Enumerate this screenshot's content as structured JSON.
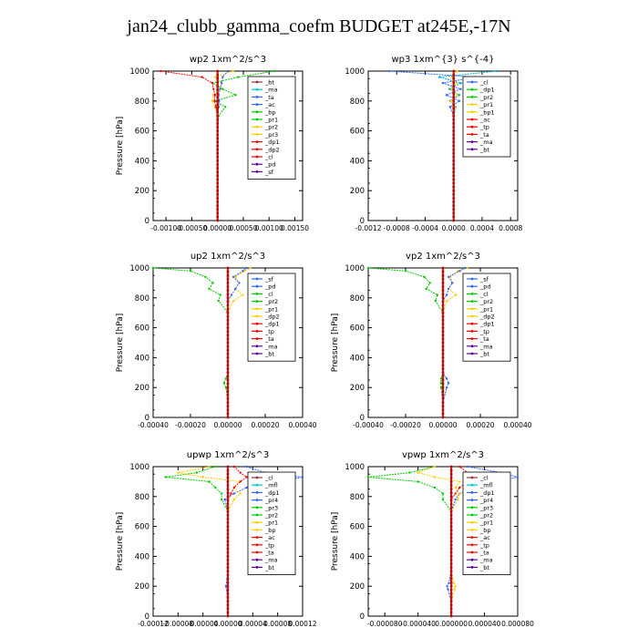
{
  "page": {
    "title": "jan24_clubb_gamma_coefm  BUDGET at245E,-17N"
  },
  "chart_data": [
    {
      "type": "line",
      "title": "wp2   1xm^2/s^3",
      "ylabel": "Pressure [hPa]",
      "ylim": [
        1000,
        0
      ],
      "xlim": [
        -0.00125,
        0.00165
      ],
      "xticks": [
        -0.001,
        -0.0005,
        0.0,
        0.0005,
        0.001,
        0.0015
      ],
      "xtick_labels": [
        "-0.00100",
        "-0.00050",
        "0.00000",
        "0.00050",
        "0.00100",
        "0.00150"
      ],
      "yticks": [
        0,
        200,
        400,
        600,
        800,
        1000
      ],
      "legend": [
        "_bt",
        "_ma",
        "_ta",
        "_ac",
        "_bp",
        "_pr1",
        "_pr2",
        "_pr3",
        "_dp1",
        "_dp2",
        "_cl",
        "_pd",
        "_sf"
      ],
      "pressure": [
        0,
        100,
        200,
        300,
        400,
        500,
        600,
        700,
        760,
        800,
        840,
        880,
        920,
        960,
        1000
      ],
      "series": [
        {
          "name": "_bp",
          "color": "#00cc00",
          "values": [
            0,
            0,
            0,
            0,
            0,
            0,
            0,
            2e-05,
            0.00015,
            -5e-05,
            0.00035,
            0.0001,
            -0.0001,
            0.0004,
            0.0011
          ]
        },
        {
          "name": "_pr1",
          "color": "#ffcc00",
          "values": [
            0,
            0,
            0,
            0,
            0,
            0,
            0,
            0,
            -5e-05,
            -0.0001,
            -8e-05,
            5e-05,
            8e-05,
            -5e-05,
            0.0003
          ]
        },
        {
          "name": "_dp1",
          "color": "#ff0000",
          "values": [
            0,
            0,
            0,
            0,
            0,
            0,
            0,
            0,
            -3e-05,
            -6e-05,
            -5e-05,
            -8e-05,
            -0.0001,
            -0.0003,
            -0.0011
          ]
        },
        {
          "name": "_ta",
          "color": "#3366ff",
          "values": [
            0,
            0,
            0,
            0,
            0,
            0,
            0,
            0,
            2e-05,
            3e-05,
            2e-05,
            5e-05,
            8e-05,
            0.0001,
            0.0002
          ]
        },
        {
          "name": "_pd",
          "color": "#660099",
          "values": [
            0,
            0,
            0,
            0,
            0,
            0,
            0,
            0,
            0,
            0,
            0,
            0,
            0,
            0,
            0
          ]
        },
        {
          "name": "_bt",
          "color": "#993333",
          "values": [
            0,
            0,
            0,
            0,
            0,
            0,
            0,
            0,
            0,
            0,
            0,
            0,
            0,
            0,
            0
          ]
        }
      ]
    },
    {
      "type": "line",
      "title": "wp3   1xm^{3} s^{-4}",
      "ylabel": "",
      "ylim": [
        1000,
        0
      ],
      "xlim": [
        -0.0012,
        0.0009
      ],
      "xticks": [
        -0.0012,
        -0.0008,
        -0.0004,
        0.0,
        0.0004,
        0.0008
      ],
      "xtick_labels": [
        "-0.0012",
        "-0.0008",
        "-0.0004",
        "0.0000",
        "0.0004",
        "0.0008"
      ],
      "yticks": [
        0,
        200,
        400,
        600,
        800,
        1000
      ],
      "legend": [
        "_cl",
        "_dp1",
        "_pr2",
        "_pr1",
        "_bp1",
        "_ac",
        "_tp",
        "_ta",
        "_ma",
        "_bt"
      ],
      "pressure": [
        0,
        100,
        200,
        300,
        400,
        500,
        600,
        700,
        760,
        800,
        840,
        880,
        920,
        960,
        1000
      ],
      "series": [
        {
          "name": "_tp",
          "color": "#3366ff",
          "values": [
            0,
            0,
            0,
            0,
            0,
            0,
            0,
            0,
            -5e-05,
            8e-05,
            -0.0001,
            0.0001,
            -0.00015,
            0.0003,
            -0.0009
          ]
        },
        {
          "name": "_ta",
          "color": "#00aacc",
          "values": [
            0,
            0,
            0,
            0,
            0,
            0,
            0,
            0,
            3e-05,
            -5e-05,
            8e-05,
            -6e-05,
            0.0001,
            -0.0002,
            0.0006
          ]
        },
        {
          "name": "_bp1",
          "color": "#ffcc00",
          "values": [
            0,
            0,
            0,
            0,
            0,
            0,
            0,
            0,
            2e-05,
            -4e-05,
            5e-05,
            -3e-05,
            4e-05,
            -2e-05,
            5e-05
          ]
        },
        {
          "name": "_cl",
          "color": "#ff0000",
          "values": [
            0,
            0,
            0,
            0,
            0,
            0,
            0,
            0,
            0,
            0,
            0,
            0,
            0,
            0,
            0
          ]
        },
        {
          "name": "_bt",
          "color": "#993333",
          "values": [
            0,
            0,
            0,
            0,
            0,
            0,
            0,
            0,
            0,
            0,
            0,
            0,
            0,
            0,
            0
          ]
        }
      ]
    },
    {
      "type": "line",
      "title": "up2   1xm^2/s^3",
      "ylabel": "Pressure [hPa]",
      "ylim": [
        1000,
        0
      ],
      "xlim": [
        -0.0004,
        0.0004
      ],
      "xticks": [
        -0.0004,
        -0.0002,
        0.0,
        0.0002,
        0.0004
      ],
      "xtick_labels": [
        "-0.00040",
        "-0.00020",
        "0.00000",
        "0.00020",
        "0.00040"
      ],
      "yticks": [
        0,
        200,
        400,
        600,
        800,
        1000
      ],
      "legend": [
        "_sf",
        "_pd",
        "_cl",
        "_pr2",
        "_pr1",
        "_dp2",
        "_dp1",
        "_tp",
        "_ta",
        "_ma",
        "_bt"
      ],
      "pressure": [
        0,
        100,
        200,
        230,
        260,
        300,
        400,
        500,
        600,
        700,
        780,
        820,
        860,
        900,
        940,
        980,
        1000
      ],
      "series": [
        {
          "name": "_dp1",
          "color": "#00cc00",
          "values": [
            0,
            0,
            -1e-05,
            -2e-05,
            -1e-05,
            0,
            0,
            0,
            0,
            0,
            -5e-05,
            -4e-05,
            -0.0001,
            -8e-05,
            -0.00012,
            -0.0002,
            -0.0004
          ]
        },
        {
          "name": "_pr1",
          "color": "#ffcc00",
          "values": [
            0,
            0,
            0,
            0,
            0,
            0,
            0,
            0,
            0,
            0,
            3e-05,
            8e-05,
            4e-05,
            6e-05,
            4e-05,
            9e-05,
            0.00012
          ]
        },
        {
          "name": "_tp",
          "color": "#3366ff",
          "values": [
            0,
            0,
            0,
            0,
            0,
            0,
            0,
            0,
            0,
            0,
            0,
            2e-05,
            4e-05,
            6e-05,
            3e-05,
            8e-05,
            0.0001
          ]
        },
        {
          "name": "_dp2",
          "color": "#ff0000",
          "values": [
            0,
            0,
            0,
            0,
            0,
            0,
            0,
            0,
            0,
            0,
            0,
            0,
            0,
            0,
            0,
            0,
            0
          ]
        },
        {
          "name": "_bt",
          "color": "#993333",
          "values": [
            0,
            0,
            0,
            0,
            0,
            0,
            0,
            0,
            0,
            0,
            0,
            0,
            0,
            0,
            0,
            0,
            0
          ]
        }
      ]
    },
    {
      "type": "line",
      "title": "vp2   1xm^2/s^3",
      "ylabel": "Pressure [hPa]",
      "ylim": [
        1000,
        0
      ],
      "xlim": [
        -0.0004,
        0.0004
      ],
      "xticks": [
        -0.0004,
        -0.0002,
        0.0,
        0.0002,
        0.0004
      ],
      "xtick_labels": [
        "-0.00040",
        "-0.00020",
        "0.00000",
        "0.00020",
        "0.00040"
      ],
      "yticks": [
        0,
        200,
        400,
        600,
        800,
        1000
      ],
      "legend": [
        "_sf",
        "_pd",
        "_cl",
        "_pr2",
        "_pr1",
        "_dp2",
        "_dp1",
        "_tp",
        "_ta",
        "_ma",
        "_bt"
      ],
      "pressure": [
        0,
        100,
        200,
        230,
        260,
        300,
        400,
        500,
        600,
        700,
        780,
        820,
        860,
        900,
        940,
        980,
        1000
      ],
      "series": [
        {
          "name": "_dp1",
          "color": "#00cc00",
          "values": [
            0,
            0,
            -1e-05,
            -1e-05,
            -1e-05,
            0,
            0,
            0,
            0,
            0,
            -4e-05,
            -3e-05,
            -9e-05,
            -7e-05,
            -0.0001,
            -0.0002,
            -0.0004
          ]
        },
        {
          "name": "_pr1",
          "color": "#ffcc00",
          "values": [
            0,
            0,
            0,
            0,
            0,
            0,
            0,
            0,
            0,
            0,
            2e-05,
            7e-05,
            3e-05,
            5e-05,
            4e-05,
            8e-05,
            0.00013
          ]
        },
        {
          "name": "_tp",
          "color": "#3366ff",
          "values": [
            0,
            0,
            2e-05,
            3e-05,
            2e-05,
            0,
            0,
            0,
            0,
            0,
            0,
            2e-05,
            3e-05,
            5e-05,
            3e-05,
            9e-05,
            0.00012
          ]
        },
        {
          "name": "_dp2",
          "color": "#ff0000",
          "values": [
            0,
            0,
            0,
            0,
            0,
            0,
            0,
            0,
            0,
            0,
            0,
            0,
            0,
            0,
            0,
            0,
            0
          ]
        },
        {
          "name": "_bt",
          "color": "#993333",
          "values": [
            0,
            0,
            0,
            0,
            0,
            0,
            0,
            0,
            0,
            0,
            0,
            0,
            0,
            0,
            0,
            0,
            0
          ]
        }
      ]
    },
    {
      "type": "line",
      "title": "upwp   1xm^2/s^3",
      "ylabel": "Pressure [hPa]",
      "ylim": [
        1000,
        0
      ],
      "xlim": [
        -0.00012,
        0.00012
      ],
      "xticks": [
        -0.00012,
        -8e-05,
        -4e-05,
        0.0,
        4e-05,
        8e-05,
        0.00012
      ],
      "xtick_labels": [
        "-0.00012",
        "-0.00008",
        "-0.00004",
        "0.00000",
        "0.00004",
        "0.00008",
        "0.00012"
      ],
      "yticks": [
        0,
        200,
        400,
        600,
        800,
        1000
      ],
      "legend": [
        "_cl",
        "_mfl",
        "_dp1",
        "_pr4",
        "_pr3",
        "_pr2",
        "_pr1",
        "_bp",
        "_ac",
        "_tp",
        "_ta",
        "_ma",
        "_bt"
      ],
      "pressure": [
        0,
        100,
        200,
        300,
        400,
        500,
        600,
        700,
        780,
        820,
        860,
        900,
        930,
        960,
        1000
      ],
      "series": [
        {
          "name": "_bp",
          "color": "#00cc00",
          "values": [
            0,
            0,
            0,
            0,
            0,
            0,
            0,
            0,
            -1e-05,
            -1e-05,
            -2e-05,
            -3e-05,
            -0.0001,
            -5e-05,
            -2e-05
          ]
        },
        {
          "name": "_tp",
          "color": "#3366ff",
          "values": [
            0,
            0,
            -3e-06,
            0,
            0,
            0,
            0,
            0,
            -5e-06,
            1e-05,
            3e-05,
            8e-05,
            0.00012,
            6e-05,
            3e-05
          ]
        },
        {
          "name": "_pr1",
          "color": "#ffcc00",
          "values": [
            0,
            0,
            0,
            0,
            0,
            0,
            0,
            0,
            1e-05,
            2e-05,
            1e-05,
            2e-05,
            -4e-05,
            -8e-05,
            -3e-05
          ]
        },
        {
          "name": "_dp1",
          "color": "#ff0000",
          "values": [
            0,
            0,
            0,
            0,
            0,
            0,
            0,
            0,
            0,
            5e-06,
            1e-05,
            2e-05,
            3e-05,
            2e-05,
            1e-05
          ]
        },
        {
          "name": "_bt",
          "color": "#993333",
          "values": [
            0,
            0,
            0,
            0,
            0,
            0,
            0,
            0,
            0,
            0,
            0,
            0,
            0,
            0,
            0
          ]
        }
      ]
    },
    {
      "type": "line",
      "title": "vpwp   1xm^2/s^3",
      "ylabel": "Pressure [hPa]",
      "ylim": [
        1000,
        0
      ],
      "xlim": [
        -0.0001,
        8e-05
      ],
      "xticks": [
        -8e-05,
        -4e-05,
        0.0,
        4e-05,
        8e-05
      ],
      "xtick_labels": [
        "-0.000080",
        "-0.000040",
        "0.000000",
        "0.000040",
        "0.000080"
      ],
      "yticks": [
        0,
        200,
        400,
        600,
        800,
        1000
      ],
      "legend": [
        "_cl",
        "_mfl",
        "_dp1",
        "_pr4",
        "_pr3",
        "_pr2",
        "_pr1",
        "_bp",
        "_ac",
        "_tp",
        "_ta",
        "_ma",
        "_bt"
      ],
      "pressure": [
        0,
        100,
        180,
        200,
        220,
        300,
        400,
        500,
        600,
        700,
        780,
        820,
        860,
        900,
        930,
        960,
        1000
      ],
      "series": [
        {
          "name": "_bp",
          "color": "#00cc00",
          "values": [
            0,
            0,
            0,
            0,
            0,
            0,
            0,
            0,
            0,
            0,
            -1e-05,
            -1e-05,
            -2e-05,
            -4e-05,
            -0.0001,
            -5e-05,
            -2e-05
          ]
        },
        {
          "name": "_tp",
          "color": "#3366ff",
          "values": [
            0,
            0,
            -4e-06,
            -5e-06,
            -3e-06,
            0,
            0,
            0,
            0,
            0,
            5e-06,
            1e-05,
            3e-05,
            5e-05,
            8e-05,
            6e-05,
            2e-05
          ]
        },
        {
          "name": "_pr1",
          "color": "#ffcc00",
          "values": [
            0,
            0,
            4e-06,
            5e-06,
            3e-06,
            0,
            0,
            0,
            0,
            0,
            8e-06,
            1e-05,
            5e-06,
            1e-05,
            -2e-05,
            -4e-05,
            -2e-05
          ]
        },
        {
          "name": "_dp1",
          "color": "#ff0000",
          "values": [
            0,
            0,
            0,
            0,
            0,
            0,
            0,
            0,
            0,
            0,
            0,
            5e-06,
            1e-05,
            2e-05,
            4e-05,
            2e-05,
            1e-05
          ]
        },
        {
          "name": "_bt",
          "color": "#993333",
          "values": [
            0,
            0,
            0,
            0,
            0,
            0,
            0,
            0,
            0,
            0,
            0,
            0,
            0,
            0,
            0,
            0,
            0
          ]
        }
      ]
    }
  ]
}
